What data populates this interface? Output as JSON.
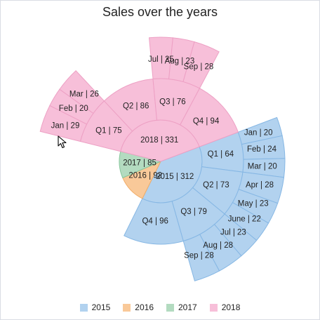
{
  "chart_data": {
    "type": "sunburst",
    "title": "Sales over the years",
    "legend_position": "bottom",
    "colors": {
      "2015": "#b2d2ef",
      "2016": "#f9c999",
      "2017": "#b3dbc0",
      "2018": "#f7bfd9",
      "stroke_2015": "#86b7e4",
      "stroke_2016": "#f2ad68",
      "stroke_2017": "#86c79b",
      "stroke_2018": "#eda0c4"
    },
    "legend": [
      "2015",
      "2016",
      "2017",
      "2018"
    ],
    "years": [
      {
        "name": "2015",
        "value": 312,
        "label": "2015 | 312",
        "quarters": [
          {
            "name": "Q1",
            "value": 64,
            "label": "Q1 | 64",
            "months": [
              {
                "name": "Jan",
                "value": 20,
                "label": "Jan | 20"
              },
              {
                "name": "Feb",
                "value": 24,
                "label": "Feb | 24"
              },
              {
                "name": "Mar",
                "value": 20,
                "label": "Mar | 20"
              }
            ]
          },
          {
            "name": "Q2",
            "value": 73,
            "label": "Q2 | 73",
            "months": [
              {
                "name": "Apr",
                "value": 28,
                "label": "Apr | 28"
              },
              {
                "name": "May",
                "value": 23,
                "label": "May | 23"
              },
              {
                "name": "June",
                "value": 22,
                "label": "June | 22"
              }
            ]
          },
          {
            "name": "Q3",
            "value": 79,
            "label": "Q3 | 79",
            "months": [
              {
                "name": "Jul",
                "value": 23,
                "label": "Jul | 23"
              },
              {
                "name": "Aug",
                "value": 28,
                "label": "Aug | 28"
              },
              {
                "name": "Sep",
                "value": 28,
                "label": "Sep | 28"
              }
            ]
          },
          {
            "name": "Q4",
            "value": 96,
            "label": "Q4 | 96",
            "months": []
          }
        ]
      },
      {
        "name": "2016",
        "value": 92,
        "label": "2016 | 92",
        "quarters": []
      },
      {
        "name": "2017",
        "value": 85,
        "label": "2017 | 85",
        "quarters": []
      },
      {
        "name": "2018",
        "value": 331,
        "label": "2018 | 331",
        "quarters": [
          {
            "name": "Q1",
            "value": 75,
            "label": "Q1 | 75",
            "months": [
              {
                "name": "Jan",
                "value": 29,
                "label": "Jan | 29"
              },
              {
                "name": "Feb",
                "value": 20,
                "label": "Feb | 20"
              },
              {
                "name": "Mar",
                "value": 26,
                "label": "Mar | 26"
              }
            ]
          },
          {
            "name": "Q2",
            "value": 86,
            "label": "Q2 | 86",
            "months": []
          },
          {
            "name": "Q3",
            "value": 76,
            "label": "Q3 | 76",
            "months": [
              {
                "name": "Jul",
                "value": 25,
                "label": "Jul | 25"
              },
              {
                "name": "Aug",
                "value": 23,
                "label": "Aug | 23"
              },
              {
                "name": "Sep",
                "value": 28,
                "label": "Sep | 28"
              }
            ]
          },
          {
            "name": "Q4",
            "value": 94,
            "label": "Q4 | 94",
            "months": []
          }
        ]
      }
    ]
  }
}
